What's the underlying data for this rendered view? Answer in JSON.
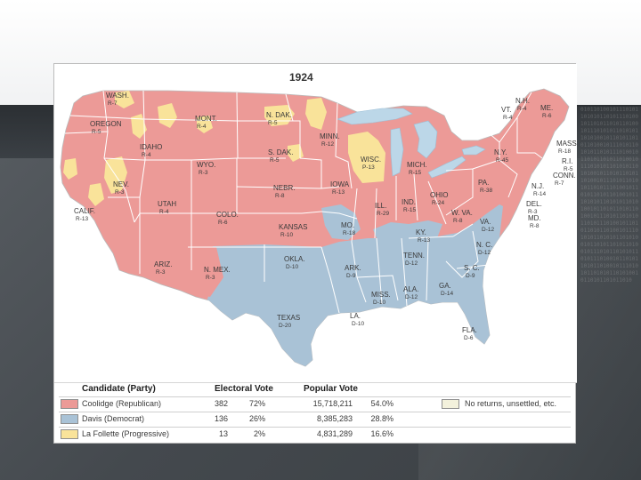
{
  "map": {
    "title": "1924",
    "colors": {
      "republican": "#ec9a97",
      "democrat": "#a9c2d6",
      "progressive": "#f9e39a",
      "no_returns": "#f3f1dc",
      "water": "#bcd7e8",
      "border": "#ffffff"
    },
    "states": [
      {
        "name": "WASH.",
        "ev": "R-7"
      },
      {
        "name": "OREGON",
        "ev": "R-5"
      },
      {
        "name": "CALIF.",
        "ev": "R-13"
      },
      {
        "name": "IDAHO",
        "ev": "R-4"
      },
      {
        "name": "NEV.",
        "ev": "R-3"
      },
      {
        "name": "MONT.",
        "ev": "R-4"
      },
      {
        "name": "WYO.",
        "ev": "R-3"
      },
      {
        "name": "UTAH",
        "ev": "R-4"
      },
      {
        "name": "ARIZ.",
        "ev": "R-3"
      },
      {
        "name": "COLO.",
        "ev": "R-6"
      },
      {
        "name": "N. MEX.",
        "ev": "R-3"
      },
      {
        "name": "N. DAK.",
        "ev": "R-5"
      },
      {
        "name": "S. DAK.",
        "ev": "R-5"
      },
      {
        "name": "NEBR.",
        "ev": "R-8"
      },
      {
        "name": "KANSAS",
        "ev": "R-10"
      },
      {
        "name": "OKLA.",
        "ev": "D-10"
      },
      {
        "name": "TEXAS",
        "ev": "D-20"
      },
      {
        "name": "MINN.",
        "ev": "R-12"
      },
      {
        "name": "IOWA",
        "ev": "R-13"
      },
      {
        "name": "MO.",
        "ev": "R-18"
      },
      {
        "name": "ARK.",
        "ev": "D-9"
      },
      {
        "name": "LA.",
        "ev": "D-10"
      },
      {
        "name": "WISC.",
        "ev": "P-13"
      },
      {
        "name": "ILL.",
        "ev": "R-29"
      },
      {
        "name": "MISS.",
        "ev": "D-10"
      },
      {
        "name": "MICH.",
        "ev": "R-15"
      },
      {
        "name": "IND.",
        "ev": "R-15"
      },
      {
        "name": "KY.",
        "ev": "R-13"
      },
      {
        "name": "TENN.",
        "ev": "D-12"
      },
      {
        "name": "ALA.",
        "ev": "D-12"
      },
      {
        "name": "OHIO",
        "ev": "R-24"
      },
      {
        "name": "W. VA.",
        "ev": "R-8"
      },
      {
        "name": "VA.",
        "ev": "D-12"
      },
      {
        "name": "N. C.",
        "ev": "D-12"
      },
      {
        "name": "S. C.",
        "ev": "D-9"
      },
      {
        "name": "GA.",
        "ev": "D-14"
      },
      {
        "name": "FLA.",
        "ev": "D-6"
      },
      {
        "name": "PA.",
        "ev": "R-38"
      },
      {
        "name": "N.Y.",
        "ev": "R-45"
      },
      {
        "name": "VT.",
        "ev": "R-4"
      },
      {
        "name": "N.H.",
        "ev": "R-4"
      },
      {
        "name": "ME.",
        "ev": "R-6"
      },
      {
        "name": "MASS.",
        "ev": "R-18"
      },
      {
        "name": "R.I.",
        "ev": "R-5"
      },
      {
        "name": "CONN.",
        "ev": "R-7"
      },
      {
        "name": "N.J.",
        "ev": "R-14"
      },
      {
        "name": "DEL.",
        "ev": "R-3"
      },
      {
        "name": "MD.",
        "ev": "R-8"
      }
    ]
  },
  "legend": {
    "headers": {
      "candidate": "Candidate (Party)",
      "electoral": "Electoral Vote",
      "popular": "Popular Vote"
    },
    "rows": [
      {
        "candidate": "Coolidge (Republican)",
        "ev": "382",
        "ev_pct": "72%",
        "pv": "15,718,211",
        "pv_pct": "54.0%",
        "color": "#ec9a97"
      },
      {
        "candidate": "Davis (Democrat)",
        "ev": "136",
        "ev_pct": "26%",
        "pv": "8,385,283",
        "pv_pct": "28.8%",
        "color": "#a9c2d6"
      },
      {
        "candidate": "La Follette (Progressive)",
        "ev": "13",
        "ev_pct": "2%",
        "pv": "4,831,289",
        "pv_pct": "16.6%",
        "color": "#f9e39a"
      }
    ],
    "no_returns": {
      "label": "No returns, unsettled, etc.",
      "color": "#f3f1dc"
    }
  }
}
